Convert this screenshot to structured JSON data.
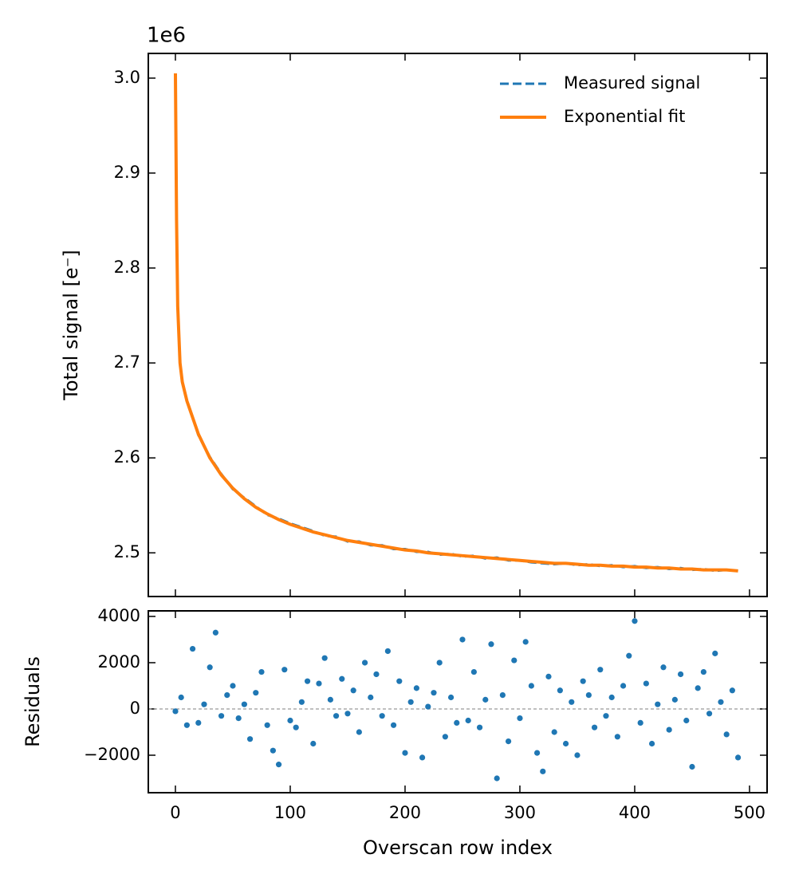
{
  "chart_data": [
    {
      "type": "line",
      "offset_text": "1e6",
      "ylabel": "Total signal [e$^-$]",
      "ylabel_display": "Total signal [e⁻]",
      "x": [
        0,
        1,
        2,
        4,
        6,
        8,
        10,
        20,
        30,
        40,
        50,
        60,
        70,
        80,
        90,
        100,
        110,
        120,
        130,
        140,
        150,
        160,
        170,
        180,
        190,
        200,
        210,
        220,
        230,
        240,
        250,
        260,
        270,
        280,
        290,
        300,
        310,
        320,
        330,
        340,
        350,
        360,
        370,
        380,
        390,
        400,
        410,
        420,
        430,
        440,
        450,
        460,
        470,
        480,
        490
      ],
      "series": [
        {
          "name": "Measured signal",
          "color": "#1f77b4",
          "linestyle": "dashed",
          "values": [
            3.005,
            2.851,
            2.758,
            2.701,
            2.679,
            2.671,
            2.661,
            2.624,
            2.601,
            2.583,
            2.567,
            2.558,
            2.549,
            2.54,
            2.536,
            2.531,
            2.527,
            2.523,
            2.518,
            2.517,
            2.512,
            2.512,
            2.508,
            2.508,
            2.504,
            2.504,
            2.501,
            2.501,
            2.498,
            2.499,
            2.496,
            2.497,
            2.494,
            2.495,
            2.492,
            2.492,
            2.49,
            2.489,
            2.488,
            2.489,
            2.487,
            2.488,
            2.486,
            2.487,
            2.485,
            2.486,
            2.484,
            2.485,
            2.483,
            2.484,
            2.482,
            2.483,
            2.481,
            2.482,
            2.481
          ]
        },
        {
          "name": "Exponential fit",
          "color": "#ff7f0e",
          "linestyle": "solid",
          "values": [
            3.005,
            2.85,
            2.76,
            2.7,
            2.68,
            2.67,
            2.66,
            2.625,
            2.6,
            2.582,
            2.568,
            2.557,
            2.548,
            2.541,
            2.535,
            2.53,
            2.526,
            2.522,
            2.519,
            2.516,
            2.513,
            2.511,
            2.509,
            2.507,
            2.505,
            2.503,
            2.502,
            2.5,
            2.499,
            2.498,
            2.497,
            2.496,
            2.495,
            2.494,
            2.493,
            2.492,
            2.491,
            2.49,
            2.489,
            2.489,
            2.488,
            2.487,
            2.487,
            2.486,
            2.486,
            2.485,
            2.485,
            2.484,
            2.484,
            2.483,
            2.483,
            2.482,
            2.482,
            2.482,
            2.481
          ]
        }
      ],
      "xlim": [
        -23.6,
        515.3
      ],
      "ylim": [
        2.454,
        3.026
      ],
      "xticks": [
        0,
        100,
        200,
        300,
        400,
        500
      ],
      "show_xticklabels": false,
      "yticks": [
        {
          "value": 2.5,
          "label": "2.5"
        },
        {
          "value": 2.6,
          "label": "2.6"
        },
        {
          "value": 2.7,
          "label": "2.7"
        },
        {
          "value": 2.8,
          "label": "2.8"
        },
        {
          "value": 2.9,
          "label": "2.9"
        },
        {
          "value": 3.0,
          "label": "3.0"
        }
      ],
      "legend": "upper right"
    },
    {
      "type": "scatter",
      "xlabel": "Overscan row index",
      "ylabel": "Residuals",
      "color": "#1f77b4",
      "hline": 0,
      "x": [
        0,
        5,
        10,
        15,
        20,
        25,
        30,
        35,
        40,
        45,
        50,
        55,
        60,
        65,
        70,
        75,
        80,
        85,
        90,
        95,
        100,
        105,
        110,
        115,
        120,
        125,
        130,
        135,
        140,
        145,
        150,
        155,
        160,
        165,
        170,
        175,
        180,
        185,
        190,
        195,
        200,
        205,
        210,
        215,
        220,
        225,
        230,
        235,
        240,
        245,
        250,
        255,
        260,
        265,
        270,
        275,
        280,
        285,
        290,
        295,
        300,
        305,
        310,
        315,
        320,
        325,
        330,
        335,
        340,
        345,
        350,
        355,
        360,
        365,
        370,
        375,
        380,
        385,
        390,
        395,
        400,
        405,
        410,
        415,
        420,
        425,
        430,
        435,
        440,
        445,
        450,
        455,
        460,
        465,
        470,
        475,
        480,
        485,
        490
      ],
      "values": [
        -100,
        500,
        -700,
        2600,
        -600,
        200,
        1800,
        3300,
        -300,
        600,
        1000,
        -400,
        200,
        -1300,
        700,
        1600,
        -700,
        -1800,
        -2400,
        1700,
        -500,
        -800,
        300,
        1200,
        -1500,
        1100,
        2200,
        400,
        -300,
        1300,
        -200,
        800,
        -1000,
        2000,
        500,
        1500,
        -300,
        2500,
        -700,
        1200,
        -1900,
        300,
        900,
        -2100,
        100,
        700,
        2000,
        -1200,
        500,
        -600,
        3000,
        -500,
        1600,
        -800,
        400,
        2800,
        -3000,
        600,
        -1400,
        2100,
        -400,
        2900,
        1000,
        -1900,
        -2700,
        1400,
        -1000,
        800,
        -1500,
        300,
        -2000,
        1200,
        600,
        -800,
        1700,
        -300,
        500,
        -1200,
        1000,
        2300,
        3800,
        -600,
        1100,
        -1500,
        200,
        1800,
        -900,
        400,
        1500,
        -500,
        -2500,
        900,
        1600,
        -200,
        2400,
        300,
        -1100,
        800,
        -2100
      ],
      "xlim": [
        -23.6,
        515.3
      ],
      "ylim": [
        -3620,
        4240
      ],
      "xticks": [
        0,
        100,
        200,
        300,
        400,
        500
      ],
      "show_xticklabels": true,
      "yticks": [
        {
          "value": -2000,
          "label": "−2000"
        },
        0,
        2000,
        4000
      ]
    }
  ]
}
